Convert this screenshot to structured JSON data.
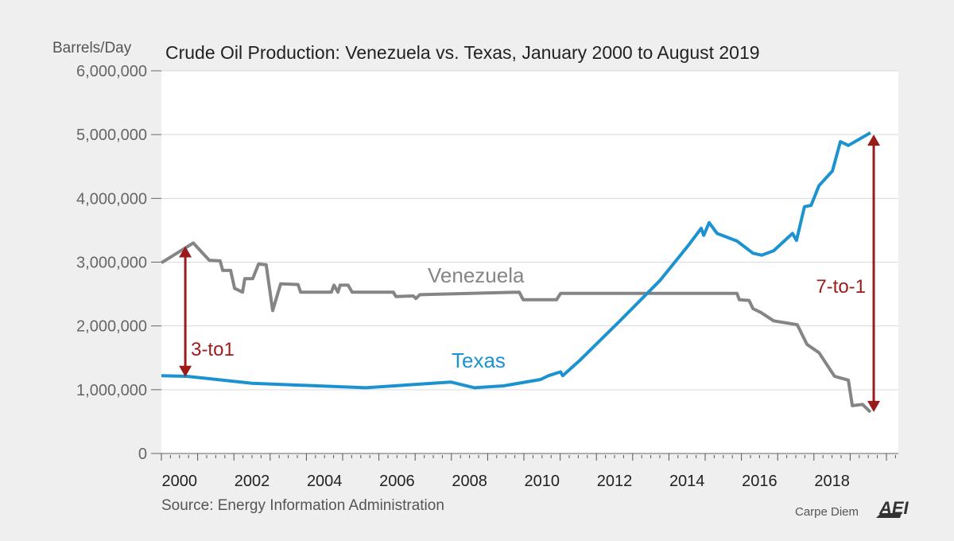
{
  "chart_data": {
    "type": "line",
    "title": "Crude Oil Production: Venezuela vs. Texas, January 2000 to August 2019",
    "ylabel": "Barrels/Day",
    "xlabel": "",
    "xlim": [
      2000,
      2020.3
    ],
    "ylim": [
      0,
      6000000
    ],
    "yticks": [
      0,
      1000000,
      2000000,
      3000000,
      4000000,
      5000000,
      6000000
    ],
    "ytick_labels": [
      "0",
      "1,000,000",
      "2,000,000",
      "3,000,000",
      "4,000,000",
      "5,000,000",
      "6,000,000"
    ],
    "xtick_labels": [
      "2000",
      "2002",
      "2004",
      "2006",
      "2008",
      "2010",
      "2012",
      "2014",
      "2016",
      "2018"
    ],
    "grid": true,
    "source": "Source: Energy Information Administration",
    "brand": "Carpe Diem",
    "logo_text": "AEI",
    "colors": {
      "texas": "#1c93d0",
      "venezuela": "#858585",
      "annotation": "#9a1b1b",
      "text": "#555555"
    },
    "series": [
      {
        "name": "Venezuela",
        "color": "#858585",
        "x": [
          2000.0,
          2000.88,
          2001.32,
          2001.62,
          2001.69,
          2001.91,
          2002.02,
          2002.24,
          2002.3,
          2002.52,
          2002.68,
          2002.89,
          2003.07,
          2003.29,
          2003.77,
          2003.84,
          2004.69,
          2004.76,
          2004.87,
          2004.93,
          2005.15,
          2005.26,
          2006.4,
          2006.47,
          2006.95,
          2007.02,
          2007.13,
          2009.87,
          2009.98,
          2010.9,
          2011.01,
          2015.88,
          2015.94,
          2016.21,
          2016.32,
          2016.54,
          2016.89,
          2017.54,
          2017.81,
          2018.14,
          2018.57,
          2018.95,
          2019.06,
          2019.34,
          2019.56
        ],
        "y": [
          2990000,
          3300000,
          3030000,
          3020000,
          2870000,
          2870000,
          2590000,
          2530000,
          2740000,
          2740000,
          2970000,
          2960000,
          2240000,
          2660000,
          2650000,
          2530000,
          2530000,
          2640000,
          2530000,
          2640000,
          2640000,
          2530000,
          2530000,
          2460000,
          2470000,
          2430000,
          2490000,
          2530000,
          2410000,
          2410000,
          2510000,
          2510000,
          2410000,
          2400000,
          2270000,
          2210000,
          2080000,
          2020000,
          1710000,
          1580000,
          1210000,
          1150000,
          750000,
          770000,
          650000
        ]
      },
      {
        "name": "Texas",
        "color": "#1c93d0",
        "x": [
          2000.0,
          2000.7,
          2002.5,
          2005.64,
          2007.98,
          2008.64,
          2009.43,
          2010.46,
          2010.68,
          2011.01,
          2011.07,
          2011.56,
          2012.65,
          2013.75,
          2014.56,
          2014.89,
          2014.96,
          2015.11,
          2015.33,
          2015.88,
          2016.32,
          2016.56,
          2016.89,
          2017.41,
          2017.52,
          2017.74,
          2017.92,
          2018.14,
          2018.51,
          2018.73,
          2018.95,
          2019.41,
          2019.56
        ],
        "y": [
          1220000,
          1210000,
          1100000,
          1030000,
          1120000,
          1030000,
          1060000,
          1160000,
          1220000,
          1280000,
          1220000,
          1470000,
          2080000,
          2710000,
          3280000,
          3530000,
          3420000,
          3620000,
          3450000,
          3330000,
          3140000,
          3110000,
          3180000,
          3450000,
          3340000,
          3870000,
          3890000,
          4200000,
          4430000,
          4890000,
          4830000,
          4980000,
          5030000
        ]
      }
    ],
    "annotations": [
      {
        "label": "3-to1",
        "x": 2000.66,
        "from": 1200000,
        "to": 3250000
      },
      {
        "label": "7-to-1",
        "x": 2019.65,
        "from": 650000,
        "to": 5000000
      }
    ]
  }
}
